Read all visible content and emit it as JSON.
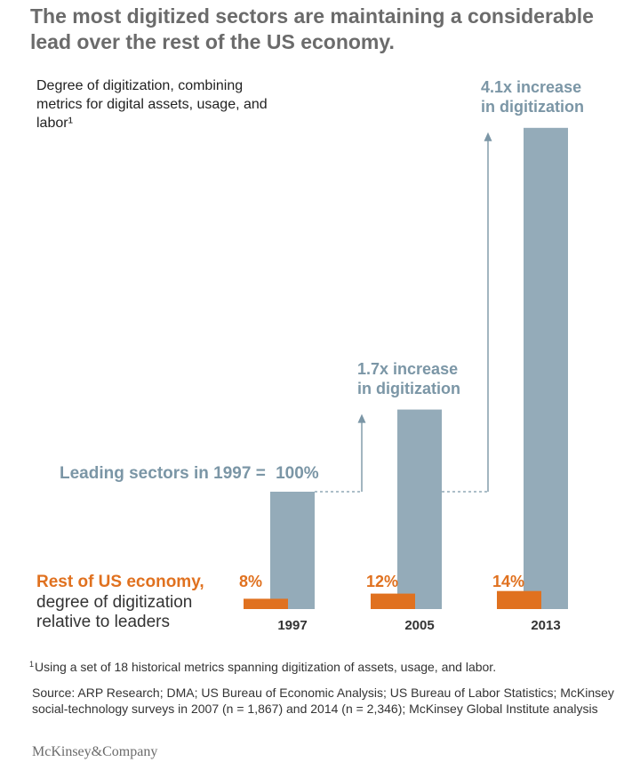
{
  "title": "The most digitized sectors are maintaining a considerable lead over the rest of the US economy.",
  "subtitle": "Degree of digitization, combining metrics for digital assets, usage, and labor¹",
  "chart_data": {
    "type": "bar",
    "categories": [
      "1997",
      "2005",
      "2013"
    ],
    "series": [
      {
        "name": "Leading sectors in 1997 = 100%",
        "values": [
          100,
          170,
          410
        ]
      },
      {
        "name": "Rest of US economy, degree of digitization relative to leaders",
        "values": [
          8,
          12,
          14
        ]
      }
    ],
    "data_labels": {
      "leaders": [
        "",
        "1.7x increase in digitization",
        "4.1x increase in digitization"
      ],
      "rest": [
        "8%",
        "12%",
        "14%"
      ]
    },
    "legend": {
      "leaders_label": "Leading sectors in 1997 =",
      "leaders_value": "100%",
      "rest_label_bold": "Rest of US economy,",
      "rest_label_line2": "degree of digitization",
      "rest_label_line3": "relative to leaders"
    },
    "annotations": {
      "inc_2005_line1": "1.7x increase",
      "inc_2005_line2": "in digitization",
      "inc_2013_line1": "4.1x increase",
      "inc_2013_line2": "in digitization"
    },
    "colors": {
      "leaders": "#94abb9",
      "rest": "#e0711f",
      "arrow": "#7b96a6"
    }
  },
  "footnote": "Using a set of 18 historical metrics spanning digitization of assets, usage, and labor.",
  "footnote_marker": "1",
  "source": "Source: ARP Research; DMA; US Bureau of Economic Analysis; US Bureau of Labor Statistics; McKinsey social-technology surveys in 2007 (n = 1,867) and 2014 (n = 2,346); McKinsey Global Institute analysis",
  "brand": "McKinsey&Company"
}
